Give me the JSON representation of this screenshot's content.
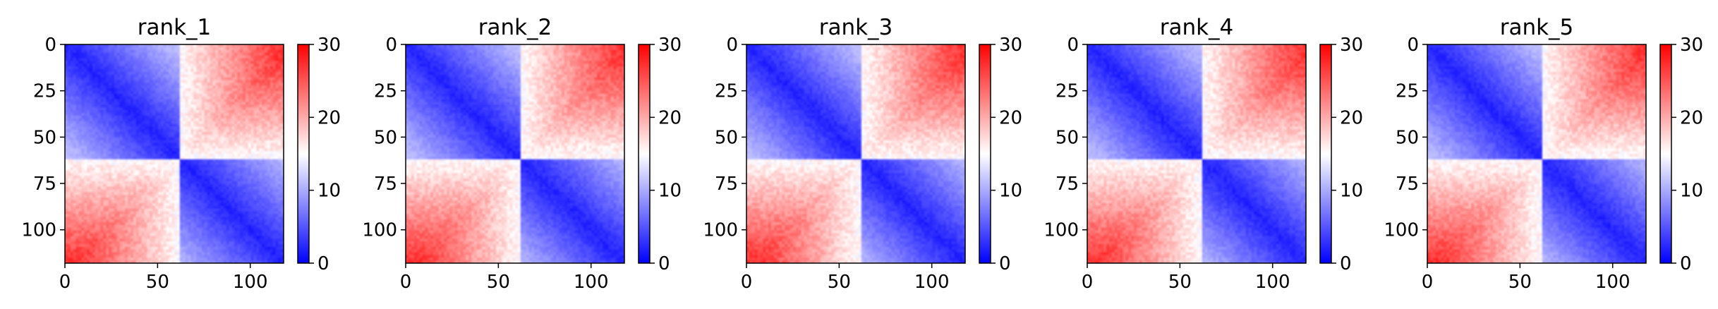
{
  "chart_data": [
    {
      "type": "heatmap",
      "title": "rank_1",
      "matrix_size": 118,
      "domain_boundary": 61,
      "xticks": [
        0,
        50,
        100
      ],
      "yticks": [
        0,
        25,
        50,
        75,
        100
      ],
      "colorbar": {
        "ticks": [
          0,
          10,
          20,
          30
        ],
        "range": [
          0,
          30
        ],
        "colormap": "bwr"
      },
      "block_value_range": {
        "intra_domain": [
          2,
          10
        ],
        "inter_domain": [
          18,
          28
        ]
      },
      "grid": false
    },
    {
      "type": "heatmap",
      "title": "rank_2",
      "matrix_size": 118,
      "domain_boundary": 61,
      "xticks": [
        0,
        50,
        100
      ],
      "yticks": [
        0,
        25,
        50,
        75,
        100
      ],
      "colorbar": {
        "ticks": [
          0,
          10,
          20,
          30
        ],
        "range": [
          0,
          30
        ],
        "colormap": "bwr"
      },
      "block_value_range": {
        "intra_domain": [
          2,
          11
        ],
        "inter_domain": [
          16,
          27
        ]
      },
      "grid": false
    },
    {
      "type": "heatmap",
      "title": "rank_3",
      "matrix_size": 118,
      "domain_boundary": 61,
      "xticks": [
        0,
        50,
        100
      ],
      "yticks": [
        0,
        25,
        50,
        75,
        100
      ],
      "colorbar": {
        "ticks": [
          0,
          10,
          20,
          30
        ],
        "range": [
          0,
          30
        ],
        "colormap": "bwr"
      },
      "block_value_range": {
        "intra_domain": [
          2,
          11
        ],
        "inter_domain": [
          17,
          28
        ]
      },
      "grid": false
    },
    {
      "type": "heatmap",
      "title": "rank_4",
      "matrix_size": 118,
      "domain_boundary": 61,
      "xticks": [
        0,
        50,
        100
      ],
      "yticks": [
        0,
        25,
        50,
        75,
        100
      ],
      "colorbar": {
        "ticks": [
          0,
          10,
          20,
          30
        ],
        "range": [
          0,
          30
        ],
        "colormap": "bwr"
      },
      "block_value_range": {
        "intra_domain": [
          2,
          11
        ],
        "inter_domain": [
          17,
          28
        ]
      },
      "grid": false
    },
    {
      "type": "heatmap",
      "title": "rank_5",
      "matrix_size": 118,
      "domain_boundary": 61,
      "xticks": [
        0,
        50,
        100
      ],
      "yticks": [
        0,
        25,
        50,
        75,
        100
      ],
      "colorbar": {
        "ticks": [
          0,
          10,
          20,
          30
        ],
        "range": [
          0,
          30
        ],
        "colormap": "bwr"
      },
      "block_value_range": {
        "intra_domain": [
          2,
          11
        ],
        "inter_domain": [
          17,
          28
        ]
      },
      "grid": false
    }
  ]
}
